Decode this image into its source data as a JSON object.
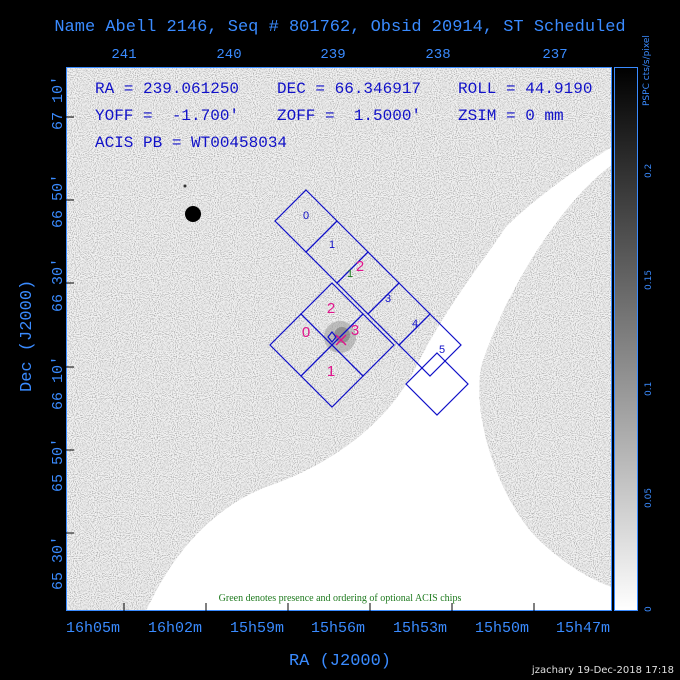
{
  "title": "Name Abell 2146, Seq # 801762, Obsid 20914, ST Scheduled",
  "top_axis": {
    "ticks": [
      "241",
      "240",
      "239",
      "238",
      "237"
    ]
  },
  "bottom_axis": {
    "label": "RA (J2000)",
    "ticks": [
      "16h05m",
      "16h02m",
      "15h59m",
      "15h56m",
      "15h53m",
      "15h50m",
      "15h47m"
    ]
  },
  "left_axis": {
    "label": "Dec (J2000)",
    "ticks": [
      "67 10'",
      "66 50'",
      "66 30'",
      "66 10'",
      "65 50'",
      "65 30'"
    ]
  },
  "info": {
    "ra": "RA = 239.061250",
    "dec": "DEC = 66.346917",
    "roll": "ROLL = 44.9190",
    "yoff": "YOFF =  -1.700'",
    "zoff": "ZOFF =  1.5000'",
    "zsim": "ZSIM = 0 mm",
    "acis_pb": "ACIS PB = WT00458034"
  },
  "chips": {
    "spectro": [
      "0",
      "1",
      "2",
      "3",
      "4",
      "5"
    ],
    "imaging": [
      "0",
      "1",
      "2",
      "3"
    ],
    "optional_marker": "1"
  },
  "note": "Green denotes presence and ordering of optional ACIS chips",
  "colorbar": {
    "label": "PSPC cts/s/pixel",
    "ticks": [
      "0",
      "0.05",
      "0.1",
      "0.15",
      "0.2"
    ]
  },
  "footer": "jzachary 19-Dec-2018 17:18",
  "colors": {
    "axis": "#3a8bff",
    "info": "#1010c8",
    "chip_outline": "#1010c8",
    "chip_label_magenta": "#e0148c",
    "optional": "#1e7a1e"
  }
}
